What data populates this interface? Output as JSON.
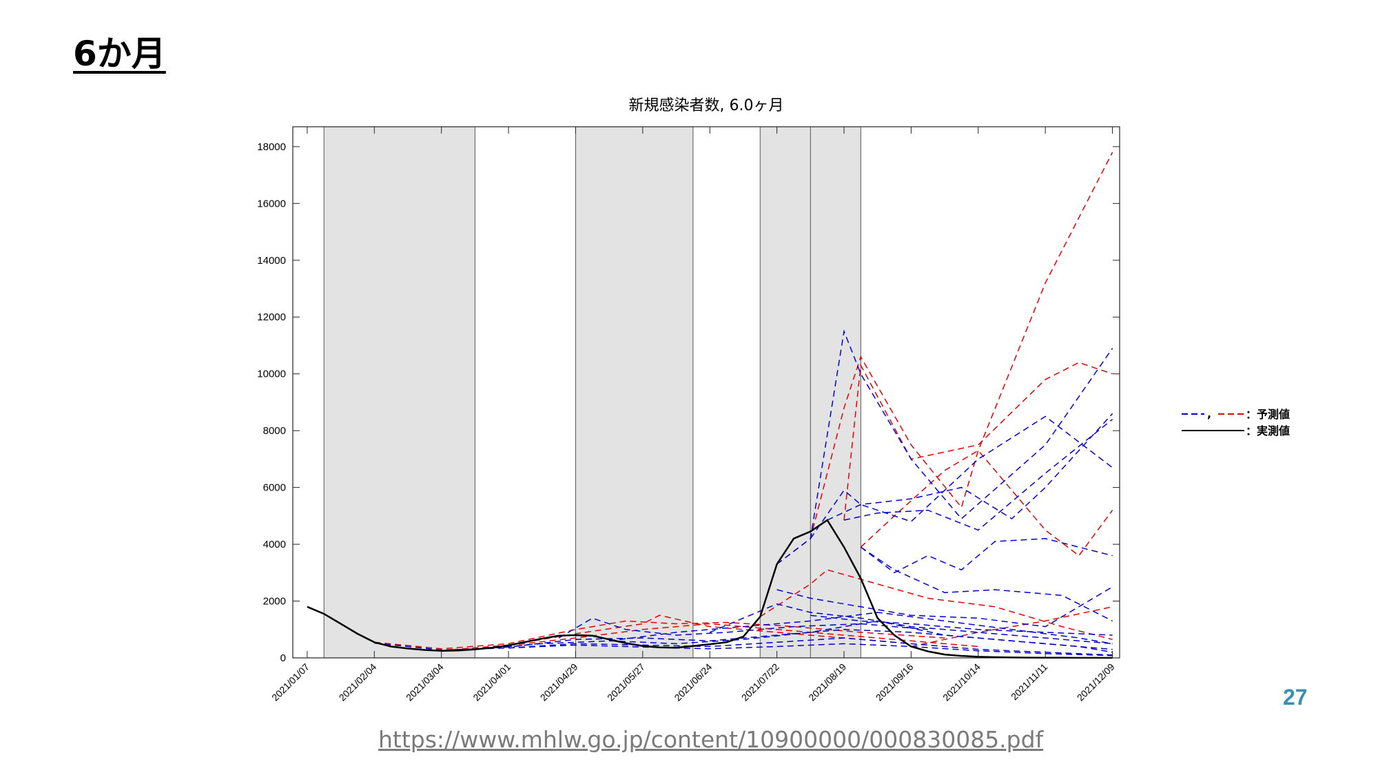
{
  "slide": {
    "title": "6か月",
    "page_number": "27",
    "source_url": "https://www.mhlw.go.jp/content/10900000/000830085.pdf"
  },
  "legend": {
    "predicted_label": "：予測値",
    "actual_label": "：実測値",
    "comma": ","
  },
  "colors": {
    "predicted_blue": "#0000cc",
    "predicted_red": "#e00000",
    "actual": "#000000",
    "shade": "#e3e3e3",
    "page_number": "#3a8fb7"
  },
  "chart_data": {
    "type": "line",
    "title": "新規感染者数, 6.0ヶ月",
    "xlabel": "",
    "ylabel": "",
    "ylim": [
      0,
      18700
    ],
    "yticks": [
      0,
      2000,
      4000,
      6000,
      8000,
      10000,
      12000,
      14000,
      16000,
      18000
    ],
    "x_start": "2021/01/01",
    "x_end": "2021/12/12",
    "xtick_labels": [
      "2021/01/07",
      "2021/02/04",
      "2021/03/04",
      "2021/04/01",
      "2021/04/29",
      "2021/05/27",
      "2021/06/24",
      "2021/07/22",
      "2021/08/19",
      "2021/09/16",
      "2021/10/14",
      "2021/11/11",
      "2021/12/09"
    ],
    "shaded_periods": [
      [
        "2021/01/14",
        "2021/03/18"
      ],
      [
        "2021/04/29",
        "2021/06/17"
      ],
      [
        "2021/07/15",
        "2021/08/26"
      ]
    ],
    "vertical_lines": [
      "2021/08/05"
    ],
    "grid": false,
    "legend_position": "right",
    "actual": {
      "name": "実測値",
      "x": [
        "2021/01/07",
        "2021/01/14",
        "2021/01/21",
        "2021/01/28",
        "2021/02/04",
        "2021/02/11",
        "2021/02/18",
        "2021/02/25",
        "2021/03/04",
        "2021/03/11",
        "2021/03/18",
        "2021/03/25",
        "2021/04/01",
        "2021/04/08",
        "2021/04/15",
        "2021/04/22",
        "2021/04/29",
        "2021/05/06",
        "2021/05/13",
        "2021/05/20",
        "2021/05/27",
        "2021/06/03",
        "2021/06/10",
        "2021/06/17",
        "2021/06/24",
        "2021/07/01",
        "2021/07/08",
        "2021/07/15",
        "2021/07/22",
        "2021/07/29",
        "2021/08/05",
        "2021/08/12",
        "2021/08/19",
        "2021/08/26",
        "2021/09/02",
        "2021/09/09",
        "2021/09/16",
        "2021/09/23",
        "2021/09/30",
        "2021/10/07",
        "2021/10/14",
        "2021/10/21",
        "2021/10/28",
        "2021/11/04",
        "2021/11/11",
        "2021/11/18",
        "2021/11/25",
        "2021/12/02",
        "2021/12/09"
      ],
      "y": [
        1800,
        1550,
        1200,
        850,
        550,
        400,
        330,
        280,
        250,
        260,
        300,
        360,
        440,
        560,
        680,
        780,
        800,
        780,
        650,
        520,
        420,
        370,
        360,
        420,
        480,
        550,
        750,
        1450,
        3300,
        4200,
        4450,
        4850,
        3900,
        2800,
        1400,
        800,
        400,
        230,
        120,
        70,
        40,
        25,
        15,
        10,
        8,
        5,
        3,
        2,
        1
      ]
    },
    "predicted_red": [
      {
        "x": [
          "2021/07/22",
          "2021/08/05",
          "2021/08/19",
          "2021/08/26",
          "2021/09/16",
          "2021/10/07",
          "2021/10/14",
          "2021/11/11",
          "2021/12/09"
        ],
        "y": [
          3300,
          4200,
          8800,
          10600,
          7500,
          5300,
          7300,
          13200,
          17800
        ]
      },
      {
        "x": [
          "2021/08/19",
          "2021/08/26",
          "2021/09/16",
          "2021/10/14",
          "2021/11/11",
          "2021/11/25",
          "2021/12/09"
        ],
        "y": [
          4850,
          10300,
          7000,
          7500,
          9800,
          10400,
          10000
        ]
      },
      {
        "x": [
          "2021/08/26",
          "2021/09/09",
          "2021/09/30",
          "2021/10/14",
          "2021/11/11",
          "2021/11/25",
          "2021/12/09"
        ],
        "y": [
          3900,
          5000,
          6600,
          7300,
          4500,
          3600,
          5200
        ]
      },
      {
        "x": [
          "2021/07/15",
          "2021/08/05",
          "2021/08/12",
          "2021/09/02",
          "2021/09/23",
          "2021/10/21",
          "2021/11/18",
          "2021/12/09"
        ],
        "y": [
          1450,
          2600,
          3100,
          2600,
          2100,
          1800,
          1100,
          650
        ]
      },
      {
        "x": [
          "2021/02/04",
          "2021/03/04",
          "2021/04/01",
          "2021/04/29",
          "2021/05/20",
          "2021/06/10",
          "2021/07/01",
          "2021/07/29",
          "2021/08/26",
          "2021/09/30"
        ],
        "y": [
          550,
          320,
          500,
          1000,
          1300,
          1200,
          1250,
          1100,
          900,
          700
        ]
      },
      {
        "x": [
          "2021/03/04",
          "2021/04/01",
          "2021/04/29",
          "2021/05/27",
          "2021/06/03",
          "2021/06/24",
          "2021/07/22",
          "2021/08/19",
          "2021/09/16"
        ],
        "y": [
          260,
          450,
          850,
          1200,
          1500,
          1100,
          900,
          700,
          500
        ]
      },
      {
        "x": [
          "2021/04/01",
          "2021/04/29",
          "2021/05/27",
          "2021/06/24",
          "2021/07/22",
          "2021/08/19",
          "2021/09/16",
          "2021/10/14"
        ],
        "y": [
          440,
          700,
          1000,
          1200,
          1000,
          800,
          600,
          400
        ]
      },
      {
        "x": [
          "2021/09/16",
          "2021/10/14",
          "2021/11/11",
          "2021/12/09"
        ],
        "y": [
          400,
          900,
          1300,
          1800
        ]
      }
    ],
    "predicted_blue": [
      {
        "x": [
          "2021/07/22",
          "2021/08/05",
          "2021/08/19",
          "2021/08/26",
          "2021/09/16",
          "2021/10/07",
          "2021/11/11",
          "2021/12/09"
        ],
        "y": [
          3300,
          4200,
          11500,
          10000,
          7000,
          4900,
          7500,
          10900
        ]
      },
      {
        "x": [
          "2021/08/05",
          "2021/08/19",
          "2021/08/26",
          "2021/09/16",
          "2021/10/14",
          "2021/11/11",
          "2021/12/09"
        ],
        "y": [
          4200,
          5900,
          5400,
          4800,
          7000,
          8500,
          6700
        ]
      },
      {
        "x": [
          "2021/08/12",
          "2021/08/26",
          "2021/09/16",
          "2021/10/07",
          "2021/10/28",
          "2021/11/11",
          "2021/12/09"
        ],
        "y": [
          4850,
          5400,
          5600,
          6000,
          4900,
          6000,
          8600
        ]
      },
      {
        "x": [
          "2021/08/19",
          "2021/09/02",
          "2021/09/23",
          "2021/10/14",
          "2021/11/11",
          "2021/12/09"
        ],
        "y": [
          4850,
          5100,
          5200,
          4500,
          6500,
          8400
        ]
      },
      {
        "x": [
          "2021/08/26",
          "2021/09/09",
          "2021/09/23",
          "2021/10/07",
          "2021/10/21",
          "2021/11/11",
          "2021/12/09"
        ],
        "y": [
          3900,
          3000,
          3600,
          3100,
          4100,
          4200,
          3600
        ]
      },
      {
        "x": [
          "2021/08/26",
          "2021/09/09",
          "2021/09/30",
          "2021/10/21",
          "2021/11/18",
          "2021/12/09"
        ],
        "y": [
          3900,
          3100,
          2300,
          2400,
          2200,
          1300
        ]
      },
      {
        "x": [
          "2021/07/22",
          "2021/08/05",
          "2021/08/26",
          "2021/09/16",
          "2021/10/14",
          "2021/11/11",
          "2021/12/09"
        ],
        "y": [
          2400,
          2100,
          1800,
          1500,
          1400,
          1100,
          2500
        ]
      },
      {
        "x": [
          "2021/06/24",
          "2021/07/22",
          "2021/08/05",
          "2021/08/26",
          "2021/09/16",
          "2021/10/14",
          "2021/11/11",
          "2021/12/09"
        ],
        "y": [
          900,
          1900,
          1600,
          1400,
          1100,
          900,
          700,
          500
        ]
      },
      {
        "x": [
          "2021/04/22",
          "2021/05/06",
          "2021/05/20",
          "2021/06/10",
          "2021/07/01",
          "2021/07/29",
          "2021/08/26",
          "2021/09/23"
        ],
        "y": [
          700,
          1400,
          1000,
          800,
          900,
          1100,
          1200,
          1000
        ]
      },
      {
        "x": [
          "2021/03/04",
          "2021/04/01",
          "2021/04/29",
          "2021/05/27",
          "2021/06/24",
          "2021/07/22",
          "2021/08/19",
          "2021/09/16",
          "2021/10/14",
          "2021/11/11",
          "2021/12/09"
        ],
        "y": [
          250,
          380,
          650,
          700,
          600,
          800,
          1000,
          900,
          700,
          500,
          300
        ]
      },
      {
        "x": [
          "2021/03/18",
          "2021/04/15",
          "2021/05/13",
          "2021/06/10",
          "2021/07/08",
          "2021/08/05",
          "2021/09/02",
          "2021/09/30",
          "2021/10/28",
          "2021/11/25",
          "2021/12/09"
        ],
        "y": [
          300,
          500,
          600,
          500,
          650,
          900,
          1300,
          800,
          600,
          400,
          200
        ]
      },
      {
        "x": [
          "2021/02/04",
          "2021/03/04",
          "2021/04/01",
          "2021/04/29",
          "2021/05/27",
          "2021/06/24",
          "2021/07/22",
          "2021/08/19",
          "2021/09/16",
          "2021/10/14",
          "2021/11/11",
          "2021/12/09"
        ],
        "y": [
          520,
          280,
          350,
          500,
          450,
          400,
          550,
          700,
          500,
          300,
          200,
          100
        ]
      },
      {
        "x": [
          "2021/04/01",
          "2021/04/29",
          "2021/05/27",
          "2021/06/24",
          "2021/07/22",
          "2021/08/19",
          "2021/09/16",
          "2021/10/14",
          "2021/11/11",
          "2021/12/09"
        ],
        "y": [
          350,
          450,
          380,
          320,
          400,
          500,
          400,
          250,
          150,
          80
        ]
      },
      {
        "x": [
          "2021/05/13",
          "2021/06/10",
          "2021/07/08",
          "2021/08/05",
          "2021/09/02",
          "2021/09/30",
          "2021/10/28",
          "2021/11/25",
          "2021/12/09"
        ],
        "y": [
          600,
          900,
          1100,
          1300,
          1600,
          1300,
          1000,
          700,
          500
        ]
      },
      {
        "x": [
          "2021/08/05",
          "2021/08/26",
          "2021/09/16",
          "2021/10/14",
          "2021/11/11",
          "2021/12/09"
        ],
        "y": [
          1500,
          1300,
          1200,
          1000,
          900,
          800
        ]
      }
    ]
  }
}
